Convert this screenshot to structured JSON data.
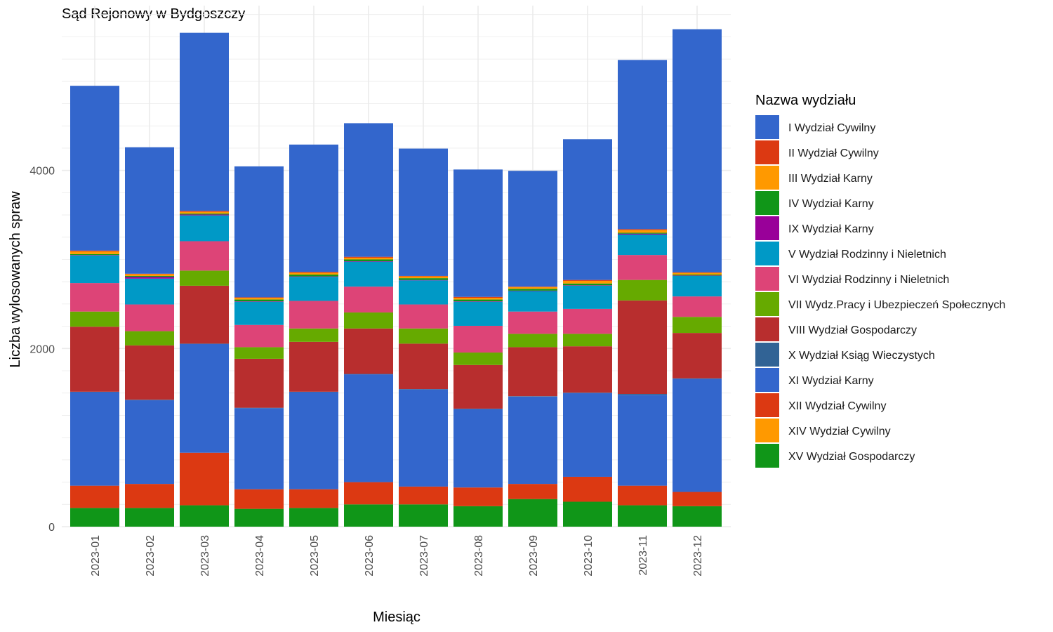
{
  "chart_data": {
    "type": "bar",
    "stacked": true,
    "title": "Sąd Rejonowy w Bydgoszczy",
    "xlabel": "Miesiąc",
    "ylabel": "Liczba wylosowanych spraw",
    "ylim": [
      0,
      5850
    ],
    "y_ticks": [
      0,
      2000,
      4000
    ],
    "y_tick_labels": [
      "0",
      "2000",
      "4000"
    ],
    "grid": true,
    "legend_position": "right",
    "legend_title": "Nazwa wydziału",
    "categories": [
      "2023-01",
      "2023-02",
      "2023-03",
      "2023-04",
      "2023-05",
      "2023-06",
      "2023-07",
      "2023-08",
      "2023-09",
      "2023-10",
      "2023-11",
      "2023-12"
    ],
    "series": [
      {
        "name": "I Wydział Cywilny",
        "color": "#3366CC",
        "values": [
          1850,
          1420,
          2000,
          1470,
          1430,
          1500,
          1430,
          1430,
          1300,
          1580,
          1900,
          2730
        ]
      },
      {
        "name": "II Wydział Cywilny",
        "color": "#DC3912",
        "values": [
          10,
          5,
          10,
          5,
          10,
          10,
          5,
          10,
          5,
          10,
          10,
          5
        ]
      },
      {
        "name": "III Wydział Karny",
        "color": "#FF9900",
        "values": [
          30,
          20,
          20,
          20,
          20,
          20,
          20,
          20,
          20,
          30,
          30,
          20
        ]
      },
      {
        "name": "IV Wydział Karny",
        "color": "#109618",
        "values": [
          10,
          10,
          10,
          20,
          20,
          20,
          20,
          20,
          20,
          20,
          10,
          10
        ]
      },
      {
        "name": "IX Wydział Karny",
        "color": "#990099",
        "values": [
          5,
          20,
          10,
          5,
          5,
          5,
          5,
          5,
          5,
          5,
          10,
          5
        ]
      },
      {
        "name": "V Wydział Rodzinny i Nieletnich",
        "color": "#0099C6",
        "values": [
          310,
          290,
          290,
          260,
          270,
          280,
          270,
          270,
          230,
          260,
          230,
          230
        ]
      },
      {
        "name": "VI Wydział Rodzinny i Nieletnich",
        "color": "#DD4477",
        "values": [
          320,
          300,
          330,
          250,
          310,
          290,
          270,
          300,
          250,
          280,
          280,
          230
        ]
      },
      {
        "name": "VII Wydz.Pracy i Ubezpieczeń Społecznych",
        "color": "#66AA00",
        "values": [
          170,
          160,
          170,
          130,
          150,
          180,
          170,
          140,
          150,
          140,
          230,
          180
        ]
      },
      {
        "name": "VIII Wydział Gospodarczy",
        "color": "#B82E2E",
        "values": [
          730,
          610,
          650,
          550,
          560,
          510,
          510,
          490,
          550,
          520,
          1050,
          510
        ]
      },
      {
        "name": "X Wydział Ksiąg Wieczystych",
        "color": "#316395",
        "values": [
          5,
          5,
          5,
          5,
          5,
          5,
          5,
          5,
          5,
          5,
          10,
          5
        ]
      },
      {
        "name": "XI Wydział Karny",
        "color": "#3366CC",
        "values": [
          1050,
          940,
          1220,
          910,
          1090,
          1210,
          1090,
          880,
          980,
          940,
          1020,
          1270
        ]
      },
      {
        "name": "XII Wydział Cywilny",
        "color": "#DC3912",
        "values": [
          250,
          270,
          590,
          220,
          210,
          250,
          200,
          210,
          170,
          280,
          220,
          160
        ]
      },
      {
        "name": "XIV Wydział Cywilny",
        "color": "#FF9900",
        "values": [
          0,
          0,
          0,
          0,
          0,
          0,
          0,
          0,
          0,
          0,
          0,
          0
        ]
      },
      {
        "name": "XV Wydział Gospodarczy",
        "color": "#109618",
        "values": [
          210,
          210,
          240,
          200,
          210,
          250,
          250,
          230,
          310,
          280,
          240,
          230
        ]
      }
    ]
  }
}
